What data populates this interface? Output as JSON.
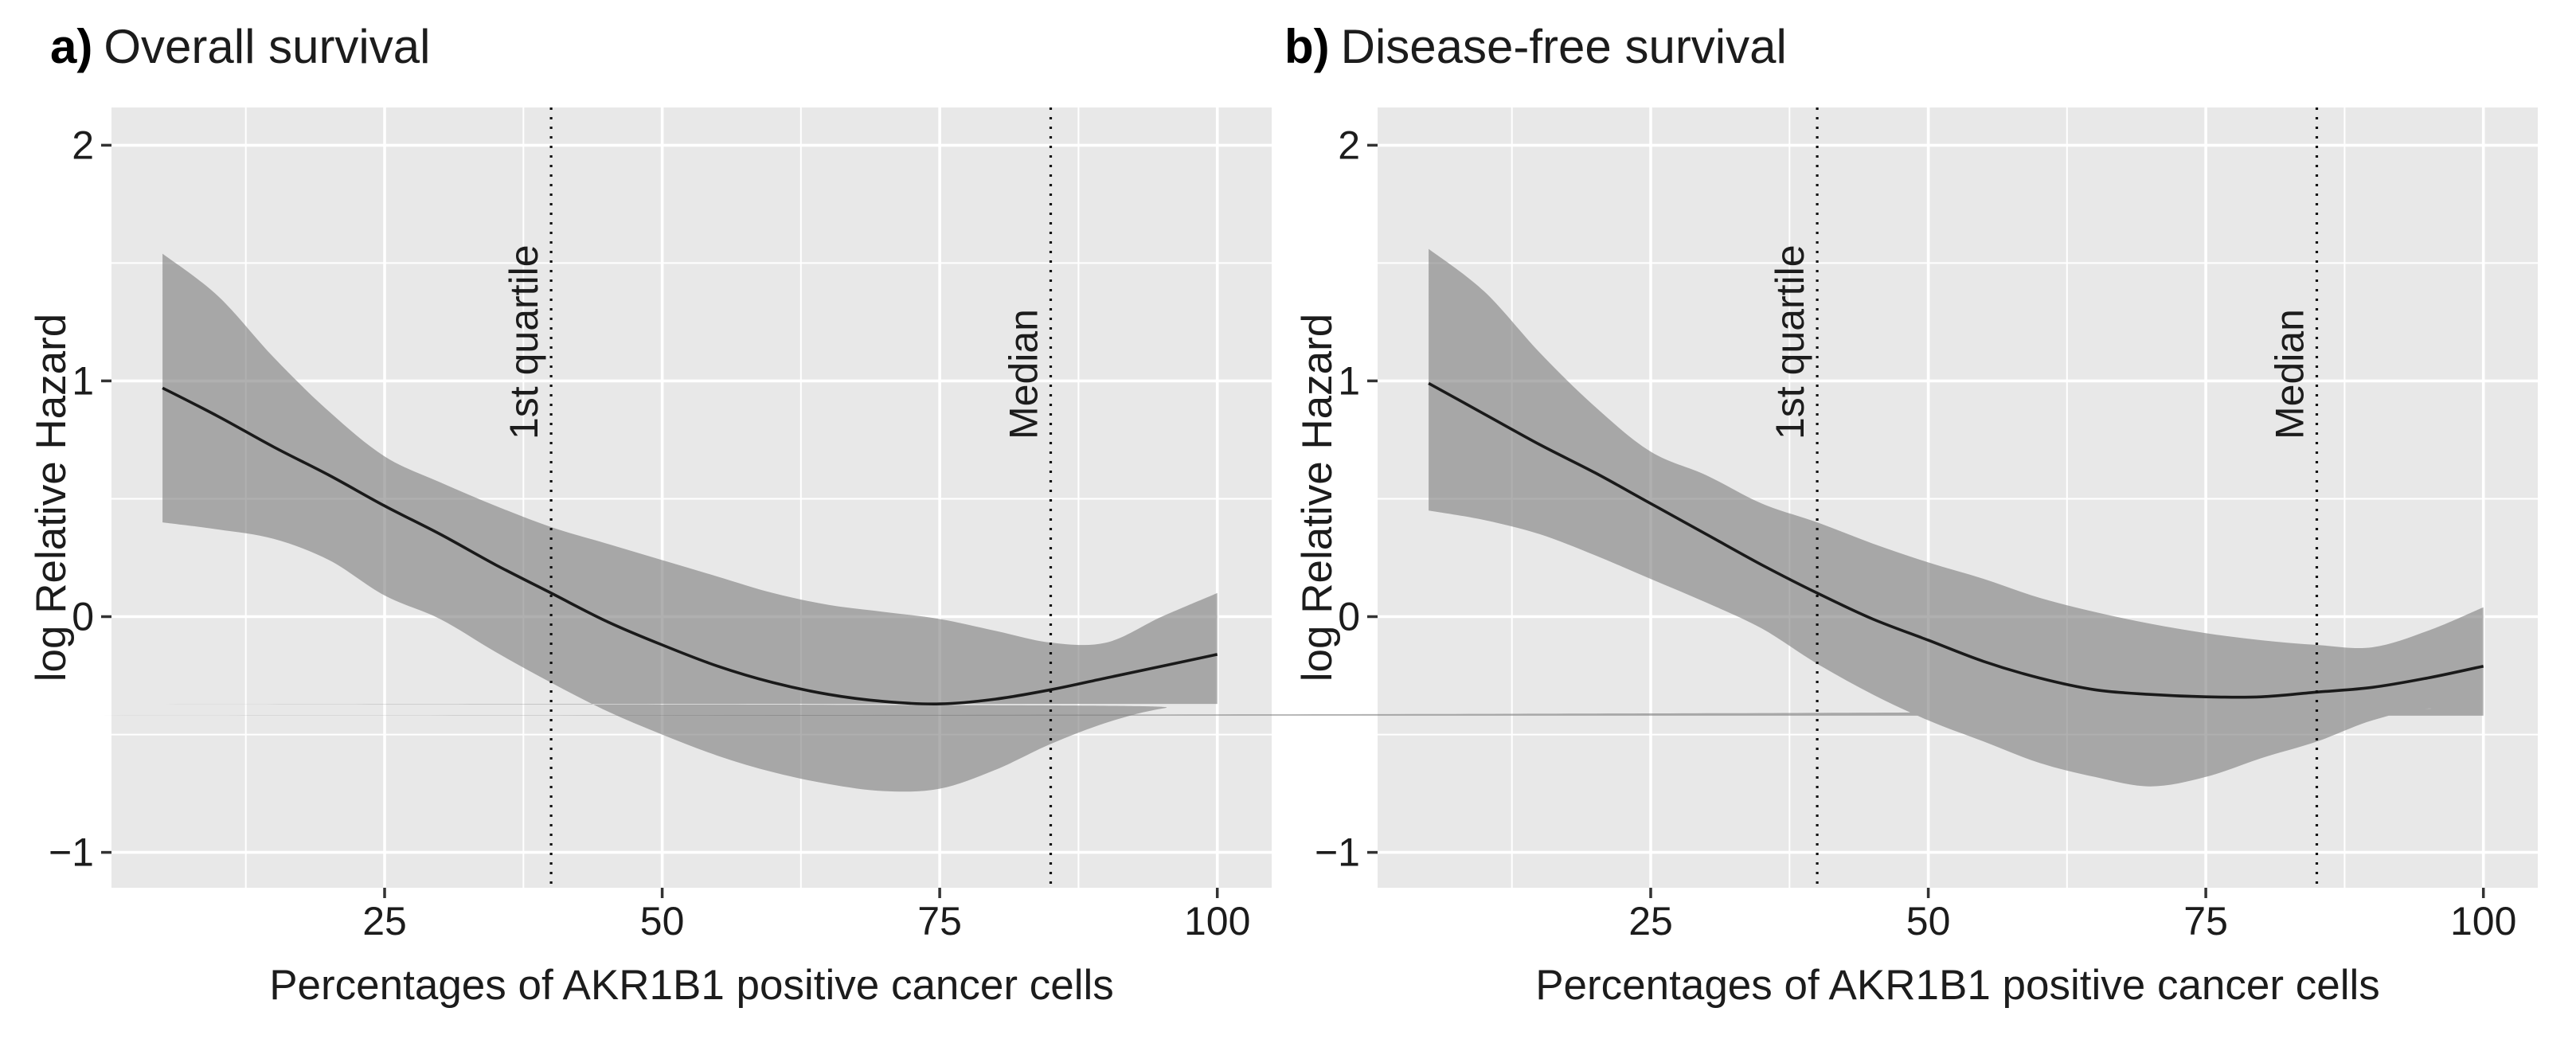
{
  "chart_data": [
    {
      "type": "area+line",
      "panel_label": "a)",
      "title": "Overall survival",
      "xlabel": "Percentages of AKR1B1 positive cancer cells",
      "ylabel": "log Relative Hazard",
      "xlim": [
        0.4,
        104.9
      ],
      "ylim": [
        -1.15,
        2.16
      ],
      "x_ticks": [
        25,
        50,
        75,
        100
      ],
      "x_tick_labels": [
        "25",
        "50",
        "75",
        "100"
      ],
      "y_ticks": [
        2,
        1,
        0,
        -1
      ],
      "y_tick_labels": [
        "2",
        "1",
        "0",
        "−1"
      ],
      "x_minor": [
        12.5,
        37.5,
        62.5,
        87.5
      ],
      "y_minor": [
        1.5,
        0.5,
        -0.5
      ],
      "grid": "on",
      "reference_lines": [
        {
          "x": 40,
          "label": "1st quartile"
        },
        {
          "x": 85,
          "label": "Median"
        }
      ],
      "x": [
        5,
        10,
        15,
        20,
        25,
        30,
        35,
        40,
        45,
        50,
        55,
        60,
        65,
        70,
        75,
        80,
        85,
        90,
        95,
        100
      ],
      "series": [
        {
          "name": "smooth_fit",
          "values": [
            0.97,
            0.85,
            0.72,
            0.6,
            0.47,
            0.35,
            0.22,
            0.1,
            -0.02,
            -0.12,
            -0.21,
            -0.28,
            -0.33,
            -0.36,
            -0.37,
            -0.35,
            -0.31,
            -0.26,
            -0.21,
            -0.16
          ]
        },
        {
          "name": "ci_upper",
          "values": [
            1.54,
            1.36,
            1.1,
            0.87,
            0.68,
            0.57,
            0.47,
            0.38,
            0.31,
            0.24,
            0.17,
            0.1,
            0.05,
            0.02,
            -0.01,
            -0.06,
            -0.11,
            -0.11,
            0.0,
            0.1
          ]
        },
        {
          "name": "ci_lower",
          "values": [
            0.4,
            0.37,
            0.33,
            0.24,
            0.09,
            -0.01,
            -0.15,
            -0.28,
            -0.4,
            -0.5,
            -0.59,
            -0.66,
            -0.71,
            -0.74,
            -0.73,
            -0.65,
            -0.54,
            -0.45,
            -0.39,
            -0.37
          ]
        }
      ]
    },
    {
      "type": "area+line",
      "panel_label": "b)",
      "title": "Disease-free survival",
      "xlabel": "Percentages of AKR1B1 positive cancer cells",
      "ylabel": "log Relative Hazard",
      "xlim": [
        0.4,
        104.9
      ],
      "ylim": [
        -1.15,
        2.16
      ],
      "x_ticks": [
        25,
        50,
        75,
        100
      ],
      "x_tick_labels": [
        "25",
        "50",
        "75",
        "100"
      ],
      "y_ticks": [
        2,
        1,
        0,
        -1
      ],
      "y_tick_labels": [
        "2",
        "1",
        "0",
        "−1"
      ],
      "x_minor": [
        12.5,
        37.5,
        62.5,
        87.5
      ],
      "y_minor": [
        1.5,
        0.5,
        -0.5
      ],
      "grid": "on",
      "reference_lines": [
        {
          "x": 40,
          "label": "1st quartile"
        },
        {
          "x": 85,
          "label": "Median"
        }
      ],
      "x": [
        5,
        10,
        15,
        20,
        25,
        30,
        35,
        40,
        45,
        50,
        55,
        60,
        65,
        70,
        75,
        80,
        85,
        90,
        95,
        100
      ],
      "series": [
        {
          "name": "smooth_fit",
          "values": [
            0.99,
            0.86,
            0.73,
            0.61,
            0.48,
            0.35,
            0.22,
            0.1,
            -0.01,
            -0.1,
            -0.19,
            -0.26,
            -0.31,
            -0.33,
            -0.34,
            -0.34,
            -0.32,
            -0.3,
            -0.26,
            -0.21
          ]
        },
        {
          "name": "ci_upper",
          "values": [
            1.56,
            1.38,
            1.12,
            0.89,
            0.7,
            0.6,
            0.48,
            0.4,
            0.31,
            0.23,
            0.16,
            0.08,
            0.02,
            -0.03,
            -0.07,
            -0.1,
            -0.12,
            -0.13,
            -0.06,
            0.04
          ]
        },
        {
          "name": "ci_lower",
          "values": [
            0.45,
            0.41,
            0.35,
            0.26,
            0.16,
            0.06,
            -0.05,
            -0.2,
            -0.33,
            -0.44,
            -0.53,
            -0.62,
            -0.68,
            -0.72,
            -0.68,
            -0.6,
            -0.53,
            -0.44,
            -0.39,
            -0.42
          ]
        }
      ]
    }
  ],
  "colors": {
    "panel_background": "#e8e8e8",
    "gridline": "#ffffff",
    "band": "rgba(120,120,120,0.59)",
    "fit_line": "#1a1a1a",
    "reference_line": "#111111",
    "tick_mark": "#333333",
    "text": "#1c1c1c"
  }
}
